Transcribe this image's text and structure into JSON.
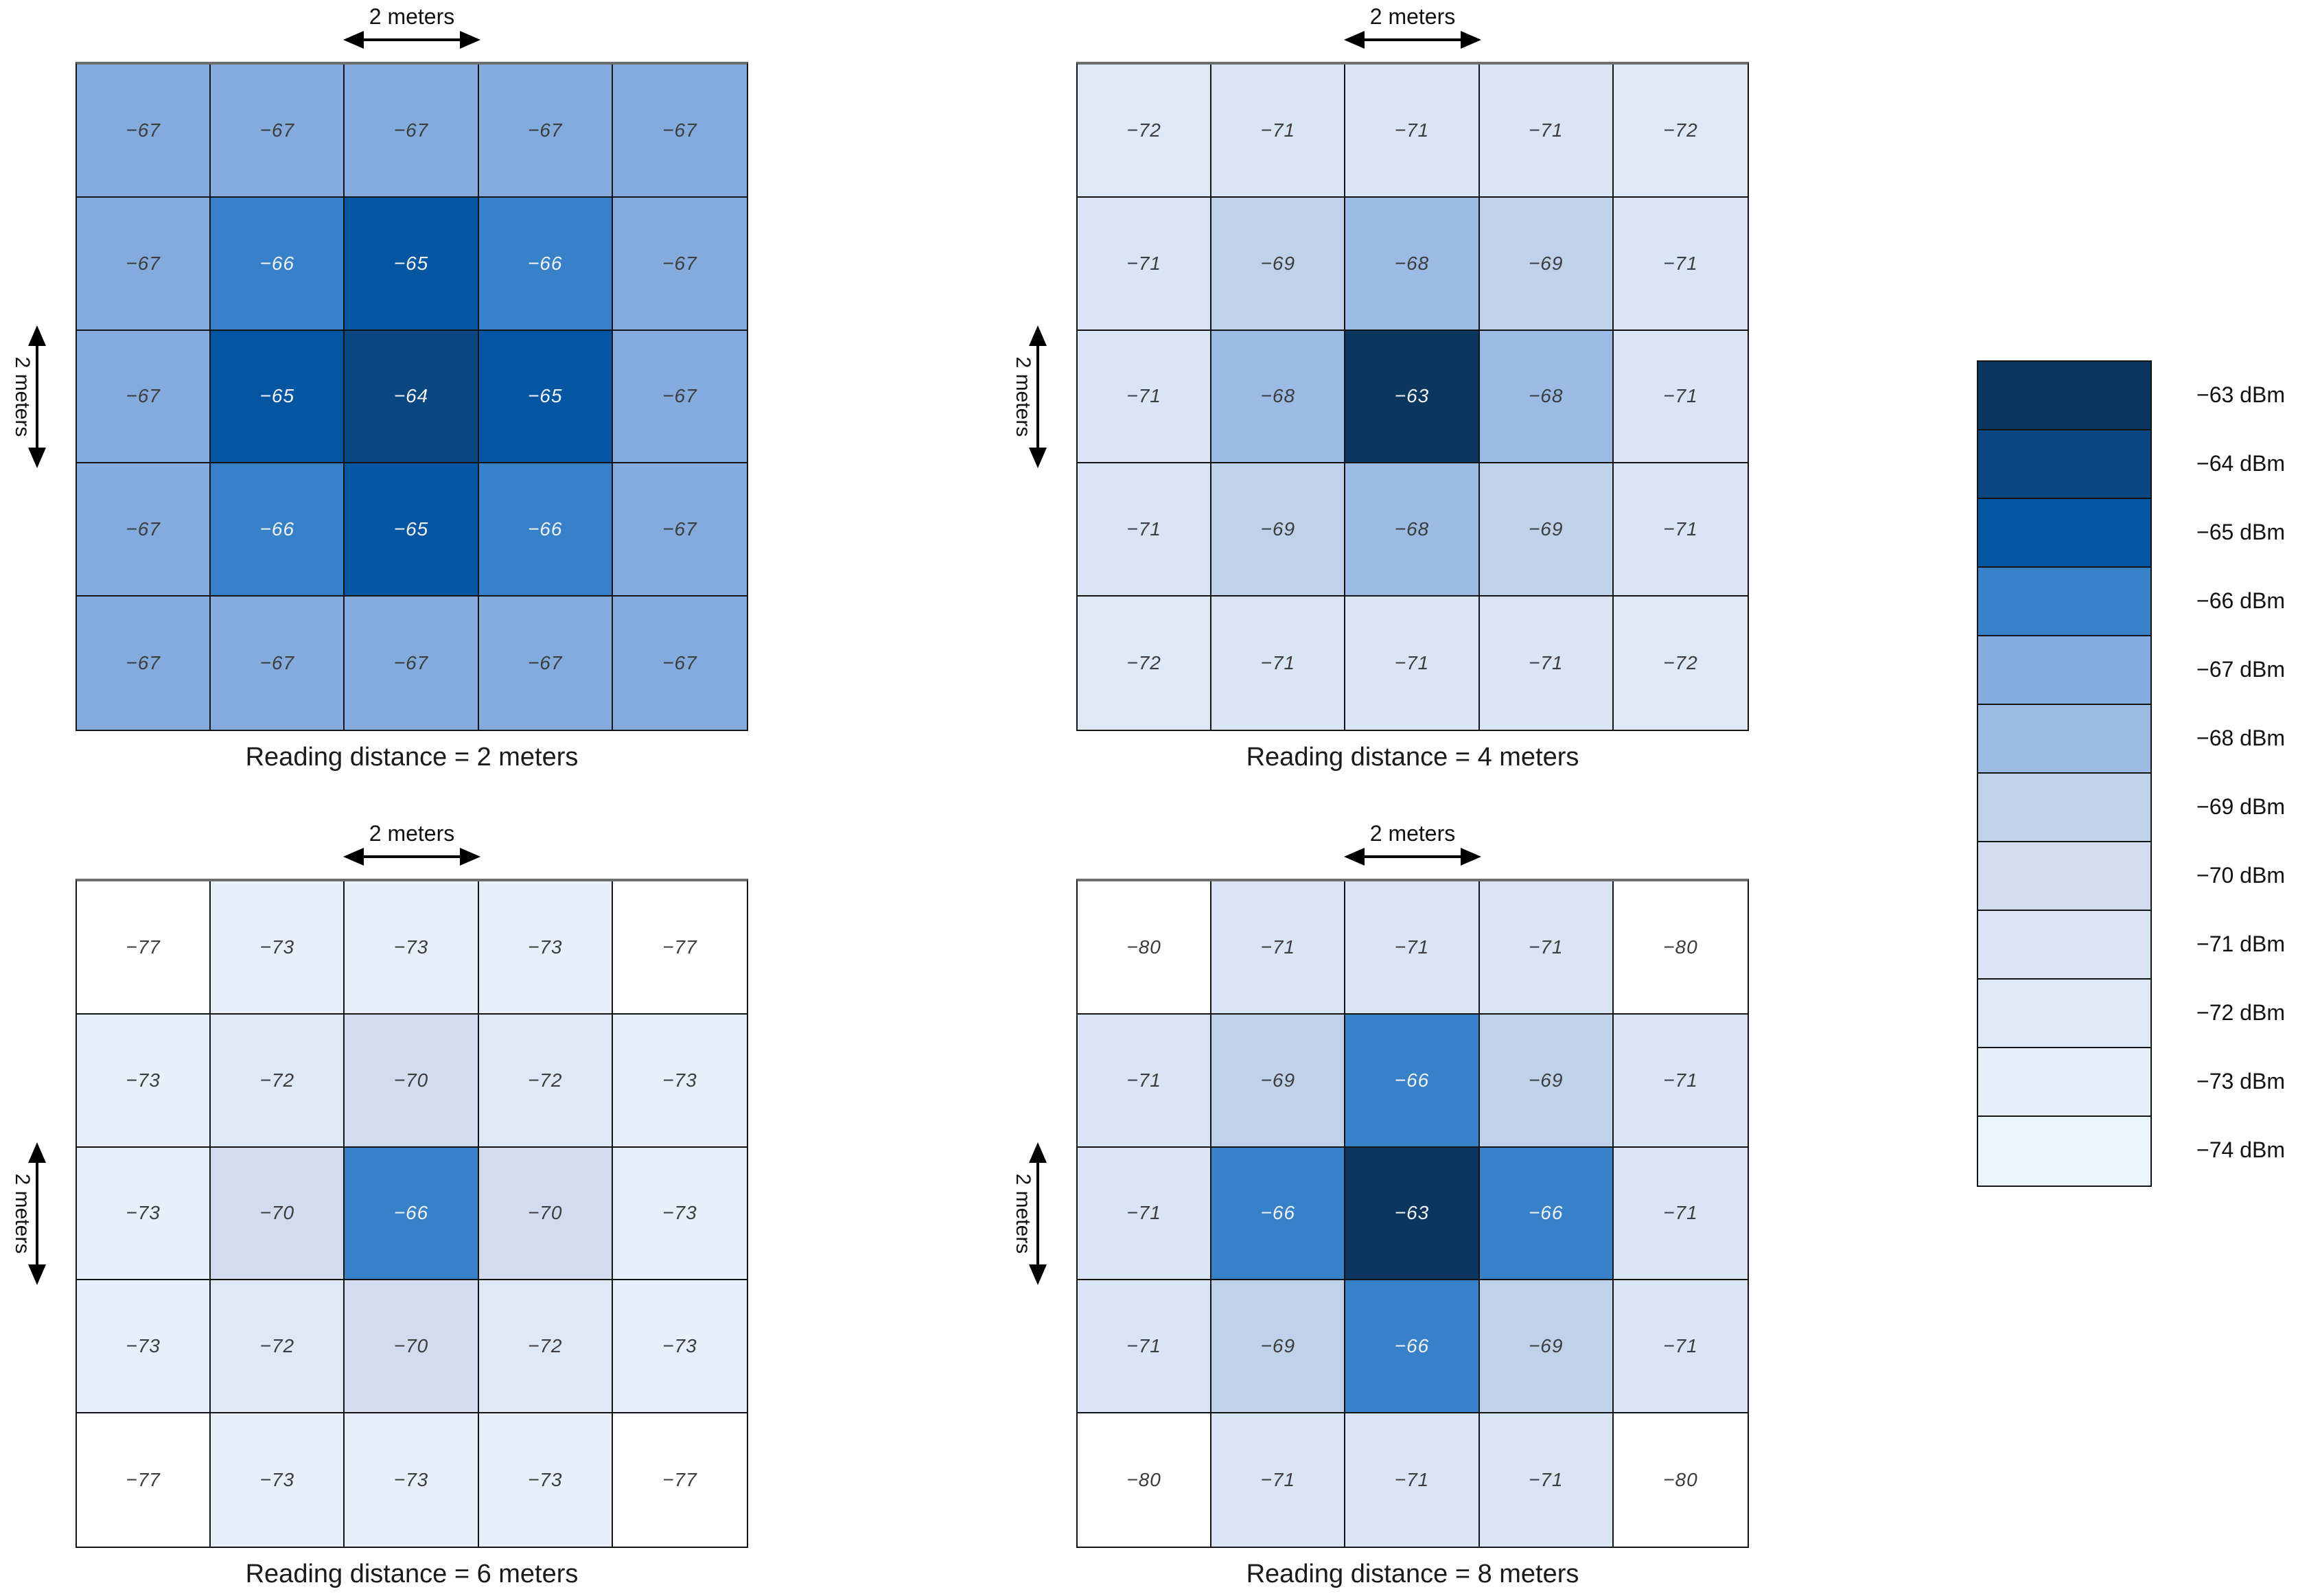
{
  "chart_data": [
    {
      "type": "heatmap",
      "caption": "Reading distance = 2 meters",
      "x_scale_label": "2 meters",
      "y_scale_label": "2 meters",
      "unit": "dBm",
      "rows": 5,
      "cols": 5,
      "cell_size_meters": 2,
      "values": [
        [
          -67,
          -67,
          -67,
          -67,
          -67
        ],
        [
          -67,
          -66,
          -65,
          -66,
          -67
        ],
        [
          -67,
          -65,
          -64,
          -65,
          -67
        ],
        [
          -67,
          -66,
          -65,
          -66,
          -67
        ],
        [
          -67,
          -67,
          -67,
          -67,
          -67
        ]
      ]
    },
    {
      "type": "heatmap",
      "caption": "Reading distance = 4 meters",
      "x_scale_label": "2 meters",
      "y_scale_label": "2 meters",
      "unit": "dBm",
      "rows": 5,
      "cols": 5,
      "cell_size_meters": 2,
      "values": [
        [
          -72,
          -71,
          -71,
          -71,
          -72
        ],
        [
          -71,
          -69,
          -68,
          -69,
          -71
        ],
        [
          -71,
          -68,
          -63,
          -68,
          -71
        ],
        [
          -71,
          -69,
          -68,
          -69,
          -71
        ],
        [
          -72,
          -71,
          -71,
          -71,
          -72
        ]
      ]
    },
    {
      "type": "heatmap",
      "caption": "Reading distance = 6 meters",
      "x_scale_label": "2 meters",
      "y_scale_label": "2 meters",
      "unit": "dBm",
      "rows": 5,
      "cols": 5,
      "cell_size_meters": 2,
      "values": [
        [
          -77,
          -73,
          -73,
          -73,
          -77
        ],
        [
          -73,
          -72,
          -70,
          -72,
          -73
        ],
        [
          -73,
          -70,
          -66,
          -70,
          -73
        ],
        [
          -73,
          -72,
          -70,
          -72,
          -73
        ],
        [
          -77,
          -73,
          -73,
          -73,
          -77
        ]
      ]
    },
    {
      "type": "heatmap",
      "caption": "Reading distance = 8 meters",
      "x_scale_label": "2 meters",
      "y_scale_label": "2 meters",
      "unit": "dBm",
      "rows": 5,
      "cols": 5,
      "cell_size_meters": 2,
      "values": [
        [
          -80,
          -71,
          -71,
          -71,
          -80
        ],
        [
          -71,
          -69,
          -66,
          -69,
          -71
        ],
        [
          -71,
          -66,
          -63,
          -66,
          -71
        ],
        [
          -71,
          -69,
          -66,
          -69,
          -71
        ],
        [
          -80,
          -71,
          -71,
          -71,
          -80
        ]
      ]
    }
  ],
  "legend": {
    "entries": [
      {
        "value": -63,
        "label": "−63 dBm",
        "color": "#0b3660"
      },
      {
        "value": -64,
        "label": "−64 dBm",
        "color": "#0a4781"
      },
      {
        "value": -65,
        "label": "−65 dBm",
        "color": "#0456a3"
      },
      {
        "value": -66,
        "label": "−66 dBm",
        "color": "#3781c9"
      },
      {
        "value": -67,
        "label": "−67 dBm",
        "color": "#83abdd"
      },
      {
        "value": -68,
        "label": "−68 dBm",
        "color": "#9bbae4"
      },
      {
        "value": -69,
        "label": "−69 dBm",
        "color": "#c0d2ea"
      },
      {
        "value": -70,
        "label": "−70 dBm",
        "color": "#d2dcee"
      },
      {
        "value": -71,
        "label": "−71 dBm",
        "color": "#d9e5f4"
      },
      {
        "value": -72,
        "label": "−72 dBm",
        "color": "#dfe9f6"
      },
      {
        "value": -73,
        "label": "−73 dBm",
        "color": "#e6effa"
      },
      {
        "value": -74,
        "label": "−74 dBm",
        "color": "#eaf5fc"
      }
    ]
  },
  "styles": {
    "out_of_range_color": "#ffffff",
    "white_text_values": [
      -63,
      -64,
      -65,
      -66
    ],
    "dark_text_color": "#3d3d3d",
    "light_text_color": "#f2f2f2"
  }
}
